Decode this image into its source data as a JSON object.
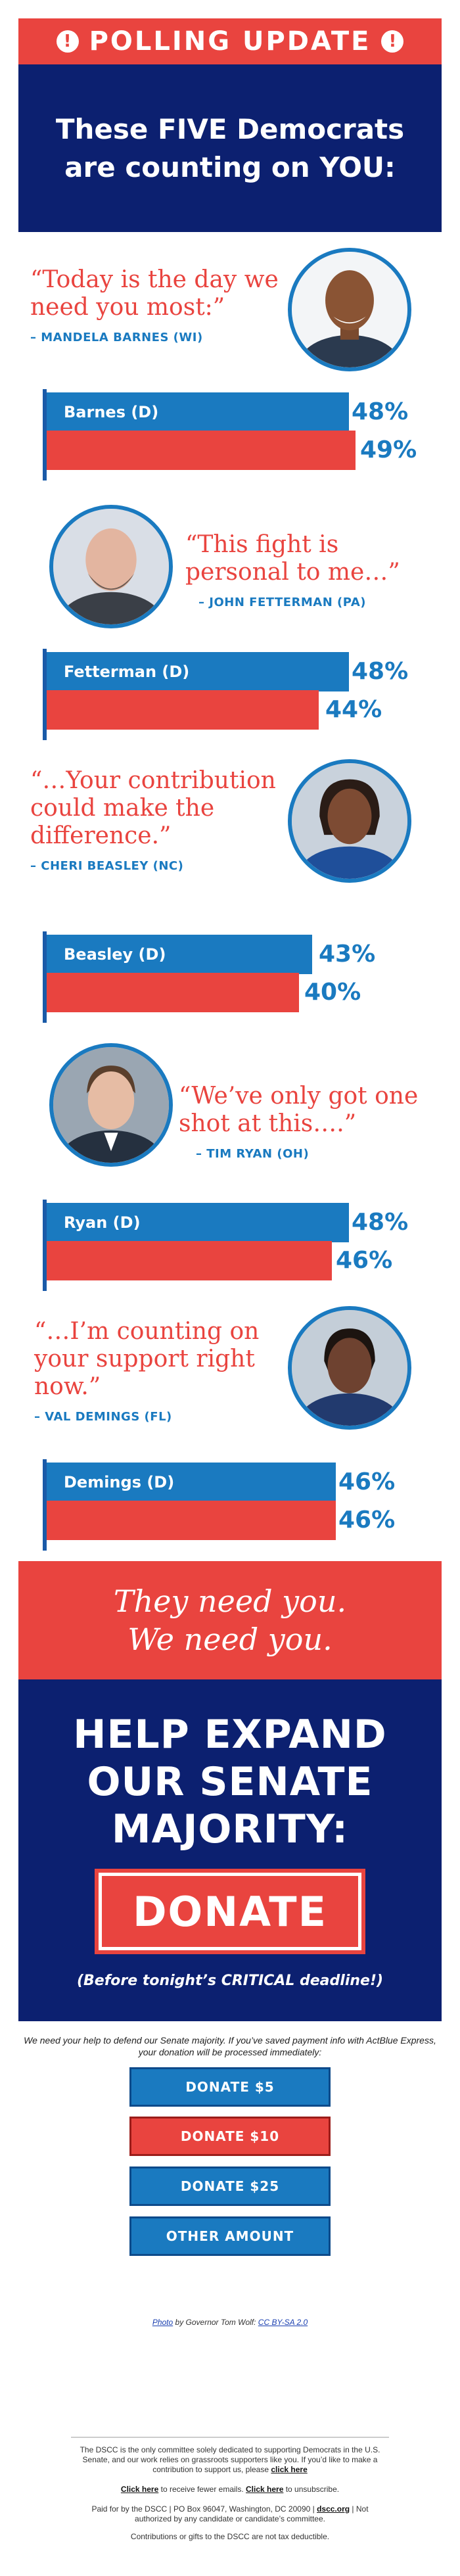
{
  "header": {
    "banner_title": "POLLING UPDATE",
    "banner_icon": "exclamation-icon",
    "headline_line1": "These FIVE Democrats",
    "headline_line2": "are counting on YOU:"
  },
  "colors": {
    "red": "#e9443f",
    "blue": "#1a7ac0",
    "navy": "#0c2070"
  },
  "candidates": [
    {
      "quote": "“Today is the day we need you most:”",
      "attribution": "– MANDELA BARNES (WI)",
      "bar_label": "Barnes (D)",
      "dem_pct": "48%",
      "rep_pct": "49%",
      "dem_value": 48,
      "rep_value": 49
    },
    {
      "quote": "“This fight is personal to me…”",
      "attribution": "– JOHN FETTERMAN (PA)",
      "bar_label": "Fetterman (D)",
      "dem_pct": "48%",
      "rep_pct": "44%",
      "dem_value": 48,
      "rep_value": 44
    },
    {
      "quote": "“…Your contribution could make the difference.”",
      "attribution": "– CHERI BEASLEY (NC)",
      "bar_label": "Beasley (D)",
      "dem_pct": "43%",
      "rep_pct": "40%",
      "dem_value": 43,
      "rep_value": 40
    },
    {
      "quote": "“We’ve only got one shot at this….”",
      "attribution": "– TIM RYAN (OH)",
      "bar_label": "Ryan (D)",
      "dem_pct": "48%",
      "rep_pct": "46%",
      "dem_value": 48,
      "rep_value": 46
    },
    {
      "quote": "“…I’m counting on your support right now.”",
      "attribution": "– VAL DEMINGS (FL)",
      "bar_label": "Demings (D)",
      "dem_pct": "46%",
      "rep_pct": "46%",
      "dem_value": 46,
      "rep_value": 46
    }
  ],
  "cta": {
    "need_line1": "They need you.",
    "need_line2": "We need you.",
    "headline_line1": "HELP EXPAND",
    "headline_line2": "OUR SENATE",
    "headline_line3": "MAJORITY:",
    "donate_label": "DONATE",
    "deadline": "(Before tonight’s CRITICAL deadline!)"
  },
  "intro": {
    "line1": "We need your help to defend our Senate majority. If you’ve saved payment info with ActBlue Express,",
    "line2": "your donation will be processed immediately:"
  },
  "amounts": [
    "DONATE $5",
    "DONATE $10",
    "DONATE $25",
    "OTHER AMOUNT"
  ],
  "credit": {
    "photo": "Photo",
    "by": " by Governor Tom Wolf: ",
    "license": "CC BY-SA 2.0"
  },
  "footer": {
    "p1_line1": "The DSCC is the only committee solely dedicated to supporting Democrats in the U.S.",
    "p1_line2": "Senate, and our work relies on grassroots supporters like you. If you’d like to make a",
    "p1_line3_a": "contribution to support us, please ",
    "p1_link": "click here",
    "p2_link_a": "Click here",
    "p2_mid": " to receive fewer emails. ",
    "p2_link_b": "Click here",
    "p2_end": " to unsubscribe.",
    "p3_line1_a": "Paid for by the DSCC | PO Box 96047, Washington, DC 20090 | ",
    "p3_link": "dscc.org",
    "p3_line1_b": " | Not",
    "p3_line2": "authorized by any candidate or candidate’s committee.",
    "p4": "Contributions or gifts to the DSCC are not tax deductible."
  }
}
